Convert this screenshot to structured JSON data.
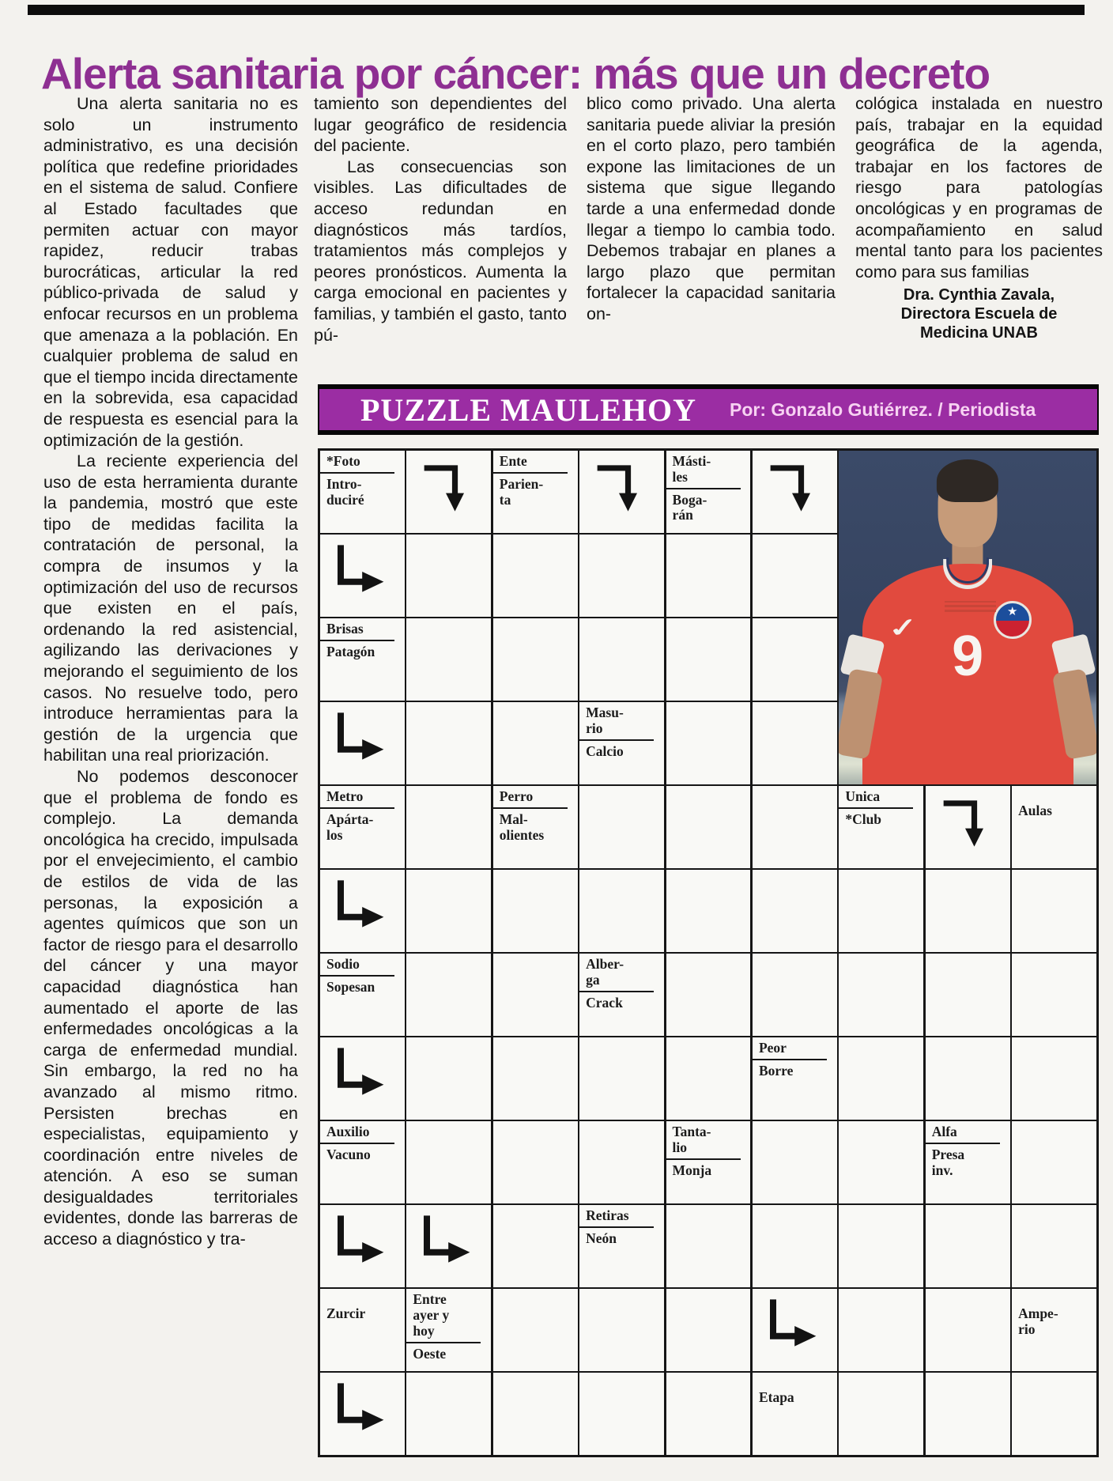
{
  "article": {
    "title": "Alerta sanitaria por cáncer: más que un decreto",
    "title_color": "#8e2f92",
    "col1_paragraphs": [
      "Una alerta sanitaria no es solo un instrumento administrativo, es una decisión política que redefine prioridades en el sistema de salud. Confiere al Estado facultades que permiten actuar con mayor rapidez, reducir trabas burocráticas, articular la red público-privada de salud y enfocar recursos en un problema que amenaza a la población. En cualquier problema de salud en que el tiempo incida directamente en la sobrevida, esa capacidad de respuesta es esencial para la optimización de la gestión.",
      "La reciente experiencia del uso de esta herramienta durante la pandemia, mostró que este tipo de medidas facilita la contratación de personal, la compra de insumos y la optimización del uso de recursos que existen en el país, ordenando la red asistencial, agilizando las derivaciones y mejorando el seguimiento de los casos. No resuelve todo, pero introduce herramientas para la gestión de la urgencia que habilitan una real priorización.",
      "No podemos desconocer que el problema de fondo es complejo. La demanda oncológica ha crecido, impulsada por el envejecimiento, el cambio de estilos de vida de las personas, la exposición a agentes químicos que son un factor de riesgo para el desarrollo del cáncer y una mayor capacidad diagnóstica han aumentado el aporte de las enfermedades oncológicas a la carga de enfermedad mundial. Sin embargo, la red no ha avanzado al mismo ritmo. Persisten brechas en especialistas, equipamiento y coordinación entre niveles de atención. A eso se suman desigualdades territoriales evidentes, donde las barreras de acceso a diagnóstico y tra-"
    ],
    "col2_paragraphs": [
      "tamiento son dependientes del lugar geográfico de residencia del paciente.",
      "Las consecuencias son visibles. Las dificultades de acceso redundan en diagnósticos más tardíos, tratamientos más complejos y peores pronósticos. Aumenta la carga emocional en pacientes y familias, y también el gasto, tanto pú-"
    ],
    "col3_paragraphs": [
      "blico como privado. Una alerta sanitaria puede aliviar la presión en el corto plazo, pero también expone las limitaciones de un sistema que sigue llegando tarde a una enfermedad donde llegar a tiempo lo cambia todo. Debemos trabajar en planes a largo plazo que permitan fortalecer la capacidad sanitaria on-"
    ],
    "col4_paragraphs": [
      "cológica instalada en nuestro país, trabajar en la equidad geográfica de la agenda, trabajar en los factores de riesgo para patologías oncológicas y en programas de acompañamiento en salud mental tanto para los pacientes como para sus familias"
    ],
    "byline_lines": [
      "Dra. Cynthia Zavala,",
      "Directora Escuela de",
      "Medicina UNAB"
    ]
  },
  "puzzle": {
    "header": {
      "title": "PUZZLE MAULEHOY",
      "credit": "Por: Gonzalo Gutiérrez.  /  Periodista",
      "bg_color": "#9b2da3",
      "title_color": "#ffffff",
      "credit_color": "#f7d2f2"
    },
    "grid": {
      "cols": 9,
      "rows": 12,
      "line_color": "#161616",
      "clues": [
        {
          "r": 0,
          "c": 0,
          "top": "*Foto",
          "bottom": "Intro-\nduciré"
        },
        {
          "r": 0,
          "c": 2,
          "top": "Ente",
          "bottom": "Parien-\nta"
        },
        {
          "r": 0,
          "c": 4,
          "top": "Másti-\nles",
          "bottom": "Boga-\nrán"
        },
        {
          "r": 2,
          "c": 0,
          "top": "Brisas",
          "bottom": "Patagón"
        },
        {
          "r": 3,
          "c": 3,
          "top": "Masu-\nrio",
          "bottom": "Calcio"
        },
        {
          "r": 4,
          "c": 0,
          "top": "Metro",
          "bottom": "Apárta-\nlos"
        },
        {
          "r": 4,
          "c": 2,
          "top": "Perro",
          "bottom": "Mal-\nolientes"
        },
        {
          "r": 4,
          "c": 6,
          "top": "Unica",
          "bottom": "*Club"
        },
        {
          "r": 4,
          "c": 8,
          "top": "Aulas",
          "bottom": null
        },
        {
          "r": 6,
          "c": 0,
          "top": "Sodio",
          "bottom": "Sopesan"
        },
        {
          "r": 6,
          "c": 3,
          "top": "Alber-\nga",
          "bottom": "Crack"
        },
        {
          "r": 7,
          "c": 5,
          "top": "Peor",
          "bottom": "Borre"
        },
        {
          "r": 8,
          "c": 0,
          "top": "Auxilio",
          "bottom": "Vacuno"
        },
        {
          "r": 8,
          "c": 4,
          "top": "Tanta-\nlio",
          "bottom": "Monja"
        },
        {
          "r": 8,
          "c": 7,
          "top": "Alfa",
          "bottom": "Presa\ninv."
        },
        {
          "r": 9,
          "c": 3,
          "top": "Retiras",
          "bottom": "Neón"
        },
        {
          "r": 10,
          "c": 0,
          "top": "Zurcir",
          "bottom": null
        },
        {
          "r": 10,
          "c": 1,
          "top": "Entre\nayer y\nhoy",
          "bottom": "Oeste"
        },
        {
          "r": 10,
          "c": 8,
          "top": "Ampe-\nrio",
          "bottom": null
        },
        {
          "r": 11,
          "c": 5,
          "top": "Etapa",
          "bottom": null
        }
      ],
      "arrows": [
        {
          "r": 0,
          "c": 1,
          "dir": "right-down"
        },
        {
          "r": 0,
          "c": 3,
          "dir": "right-down"
        },
        {
          "r": 0,
          "c": 5,
          "dir": "right-down"
        },
        {
          "r": 1,
          "c": 0,
          "dir": "down-right"
        },
        {
          "r": 3,
          "c": 0,
          "dir": "down-right"
        },
        {
          "r": 4,
          "c": 7,
          "dir": "right-down"
        },
        {
          "r": 5,
          "c": 0,
          "dir": "down-right"
        },
        {
          "r": 7,
          "c": 0,
          "dir": "down-right"
        },
        {
          "r": 9,
          "c": 0,
          "dir": "down-right"
        },
        {
          "r": 9,
          "c": 1,
          "dir": "down-right"
        },
        {
          "r": 10,
          "c": 5,
          "dir": "down-right"
        },
        {
          "r": 11,
          "c": 0,
          "dir": "down-right"
        }
      ],
      "photo": {
        "r": 0,
        "c": 6,
        "row_span": 4,
        "col_span": 3,
        "description": "Chile national team soccer player, red jersey",
        "jersey_number": "9",
        "jersey_color": "#e14a3e",
        "background_color": "#3b4a68"
      }
    }
  }
}
